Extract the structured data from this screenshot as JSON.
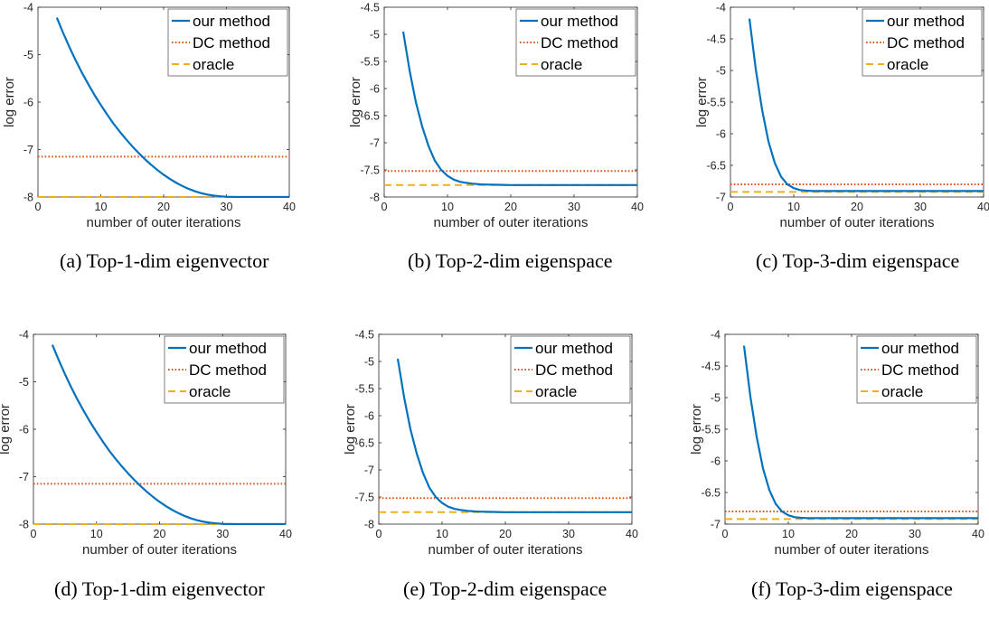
{
  "colors": {
    "our_method": "#0072BD",
    "dc_method": "#D95319",
    "oracle": "#EDB120",
    "axis": "#262626"
  },
  "chart_data": [
    {
      "id": "a",
      "caption": "(a) Top-1-dim eigenvector",
      "type": "line",
      "xlabel": "number of outer iterations",
      "ylabel": "log error",
      "xlim": [
        0,
        40
      ],
      "ylim": [
        -8,
        -4
      ],
      "xticks": [
        0,
        10,
        20,
        30,
        40
      ],
      "yticks": [
        -4,
        -5,
        -6,
        -7,
        -8
      ],
      "grid": false,
      "legend_position": "top-right",
      "series": [
        {
          "name": "our method",
          "style": "solid",
          "x": [
            3,
            4,
            5,
            6,
            7,
            8,
            9,
            10,
            11,
            12,
            13,
            14,
            15,
            16,
            17,
            18,
            19,
            20,
            21,
            22,
            23,
            24,
            25,
            26,
            27,
            28,
            29,
            30,
            32,
            34,
            36,
            38,
            40
          ],
          "y": [
            -4.22,
            -4.54,
            -4.84,
            -5.12,
            -5.38,
            -5.62,
            -5.85,
            -6.06,
            -6.26,
            -6.45,
            -6.62,
            -6.78,
            -6.93,
            -7.07,
            -7.2,
            -7.32,
            -7.43,
            -7.53,
            -7.62,
            -7.7,
            -7.77,
            -7.83,
            -7.88,
            -7.92,
            -7.95,
            -7.97,
            -7.985,
            -7.995,
            -8.0,
            -8.0,
            -8.0,
            -8.0,
            -8.0
          ]
        },
        {
          "name": "DC method",
          "style": "dotted",
          "x": [
            0,
            40
          ],
          "y": [
            -7.15,
            -7.15
          ]
        },
        {
          "name": "oracle",
          "style": "dashed",
          "x": [
            0,
            40
          ],
          "y": [
            -8.0,
            -8.0
          ]
        }
      ]
    },
    {
      "id": "b",
      "caption": "(b) Top-2-dim eigenspace",
      "type": "line",
      "xlabel": "number of outer iterations",
      "ylabel": "log error",
      "xlim": [
        0,
        40
      ],
      "ylim": [
        -8,
        -4.5
      ],
      "xticks": [
        0,
        10,
        20,
        30,
        40
      ],
      "yticks": [
        -4.5,
        -5,
        -5.5,
        -6,
        -6.5,
        -7,
        -7.5,
        -8
      ],
      "grid": false,
      "legend_position": "top-right",
      "series": [
        {
          "name": "our method",
          "style": "solid",
          "x": [
            3,
            4,
            5,
            6,
            7,
            8,
            9,
            10,
            11,
            12,
            13,
            14,
            15,
            16,
            18,
            20,
            25,
            30,
            35,
            40
          ],
          "y": [
            -4.95,
            -5.66,
            -6.25,
            -6.7,
            -7.06,
            -7.33,
            -7.5,
            -7.61,
            -7.68,
            -7.72,
            -7.74,
            -7.755,
            -7.765,
            -7.77,
            -7.775,
            -7.78,
            -7.78,
            -7.78,
            -7.78,
            -7.78
          ]
        },
        {
          "name": "DC method",
          "style": "dotted",
          "x": [
            0,
            40
          ],
          "y": [
            -7.52,
            -7.52
          ]
        },
        {
          "name": "oracle",
          "style": "dashed",
          "x": [
            0,
            40
          ],
          "y": [
            -7.78,
            -7.78
          ]
        }
      ]
    },
    {
      "id": "c",
      "caption": "(c) Top-3-dim eigenspace",
      "type": "line",
      "xlabel": "number of outer iterations",
      "ylabel": "log error",
      "xlim": [
        0,
        40
      ],
      "ylim": [
        -7,
        -4
      ],
      "xticks": [
        0,
        10,
        20,
        30,
        40
      ],
      "yticks": [
        -4,
        -4.5,
        -5,
        -5.5,
        -6,
        -6.5,
        -7
      ],
      "grid": false,
      "legend_position": "top-right",
      "series": [
        {
          "name": "our method",
          "style": "solid",
          "x": [
            3,
            4,
            5,
            6,
            7,
            8,
            9,
            10,
            11,
            12,
            13,
            14,
            15,
            16,
            18,
            20,
            25,
            30,
            35,
            40
          ],
          "y": [
            -4.18,
            -4.98,
            -5.62,
            -6.12,
            -6.46,
            -6.68,
            -6.8,
            -6.86,
            -6.89,
            -6.9,
            -6.905,
            -6.905,
            -6.905,
            -6.905,
            -6.905,
            -6.905,
            -6.905,
            -6.905,
            -6.905,
            -6.905
          ]
        },
        {
          "name": "DC method",
          "style": "dotted",
          "x": [
            0,
            40
          ],
          "y": [
            -6.8,
            -6.8
          ]
        },
        {
          "name": "oracle",
          "style": "dashed",
          "x": [
            0,
            40
          ],
          "y": [
            -6.92,
            -6.92
          ]
        }
      ]
    },
    {
      "id": "d",
      "caption": "(d) Top-1-dim eigenvector",
      "type": "line",
      "xlabel": "number of outer iterations",
      "ylabel": "log error",
      "xlim": [
        0,
        40
      ],
      "ylim": [
        -8,
        -4
      ],
      "xticks": [
        0,
        10,
        20,
        30,
        40
      ],
      "yticks": [
        -4,
        -5,
        -6,
        -7,
        -8
      ],
      "grid": false,
      "legend_position": "top-right",
      "series": [
        {
          "name": "our method",
          "style": "solid",
          "x": [
            3,
            4,
            5,
            6,
            7,
            8,
            9,
            10,
            11,
            12,
            13,
            14,
            15,
            16,
            17,
            18,
            19,
            20,
            21,
            22,
            23,
            24,
            25,
            26,
            27,
            28,
            29,
            30,
            32,
            34,
            36,
            38,
            40
          ],
          "y": [
            -4.22,
            -4.54,
            -4.84,
            -5.12,
            -5.38,
            -5.62,
            -5.85,
            -6.06,
            -6.26,
            -6.45,
            -6.62,
            -6.78,
            -6.93,
            -7.07,
            -7.2,
            -7.32,
            -7.43,
            -7.53,
            -7.62,
            -7.7,
            -7.77,
            -7.83,
            -7.88,
            -7.92,
            -7.95,
            -7.97,
            -7.985,
            -7.995,
            -8.0,
            -8.0,
            -8.0,
            -8.0,
            -8.0
          ]
        },
        {
          "name": "DC method",
          "style": "dotted",
          "x": [
            0,
            40
          ],
          "y": [
            -7.15,
            -7.15
          ]
        },
        {
          "name": "oracle",
          "style": "dashed",
          "x": [
            0,
            40
          ],
          "y": [
            -8.0,
            -8.0
          ]
        }
      ]
    },
    {
      "id": "e",
      "caption": "(e) Top-2-dim eigenspace",
      "type": "line",
      "xlabel": "number of outer iterations",
      "ylabel": "log error",
      "xlim": [
        0,
        40
      ],
      "ylim": [
        -8,
        -4.5
      ],
      "xticks": [
        0,
        10,
        20,
        30,
        40
      ],
      "yticks": [
        -4.5,
        -5,
        -5.5,
        -6,
        -6.5,
        -7,
        -7.5,
        -8
      ],
      "grid": false,
      "legend_position": "top-right",
      "series": [
        {
          "name": "our method",
          "style": "solid",
          "x": [
            3,
            4,
            5,
            6,
            7,
            8,
            9,
            10,
            11,
            12,
            13,
            14,
            15,
            16,
            18,
            20,
            25,
            30,
            35,
            40
          ],
          "y": [
            -4.95,
            -5.66,
            -6.25,
            -6.7,
            -7.06,
            -7.33,
            -7.5,
            -7.61,
            -7.68,
            -7.72,
            -7.74,
            -7.755,
            -7.765,
            -7.77,
            -7.775,
            -7.78,
            -7.78,
            -7.78,
            -7.78,
            -7.78
          ]
        },
        {
          "name": "DC method",
          "style": "dotted",
          "x": [
            0,
            40
          ],
          "y": [
            -7.52,
            -7.52
          ]
        },
        {
          "name": "oracle",
          "style": "dashed",
          "x": [
            0,
            40
          ],
          "y": [
            -7.78,
            -7.78
          ]
        }
      ]
    },
    {
      "id": "f",
      "caption": "(f) Top-3-dim eigenspace",
      "type": "line",
      "xlabel": "number of outer iterations",
      "ylabel": "log error",
      "xlim": [
        0,
        40
      ],
      "ylim": [
        -7,
        -4
      ],
      "xticks": [
        0,
        10,
        20,
        30,
        40
      ],
      "yticks": [
        -4,
        -4.5,
        -5,
        -5.5,
        -6,
        -6.5,
        -7
      ],
      "grid": false,
      "legend_position": "top-right",
      "series": [
        {
          "name": "our method",
          "style": "solid",
          "x": [
            3,
            4,
            5,
            6,
            7,
            8,
            9,
            10,
            11,
            12,
            13,
            14,
            15,
            16,
            18,
            20,
            25,
            30,
            35,
            40
          ],
          "y": [
            -4.18,
            -4.98,
            -5.62,
            -6.12,
            -6.46,
            -6.68,
            -6.8,
            -6.86,
            -6.89,
            -6.9,
            -6.905,
            -6.905,
            -6.905,
            -6.905,
            -6.905,
            -6.905,
            -6.905,
            -6.905,
            -6.905,
            -6.905
          ]
        },
        {
          "name": "DC method",
          "style": "dotted",
          "x": [
            0,
            40
          ],
          "y": [
            -6.8,
            -6.8
          ]
        },
        {
          "name": "oracle",
          "style": "dashed",
          "x": [
            0,
            40
          ],
          "y": [
            -6.92,
            -6.92
          ]
        }
      ]
    }
  ]
}
